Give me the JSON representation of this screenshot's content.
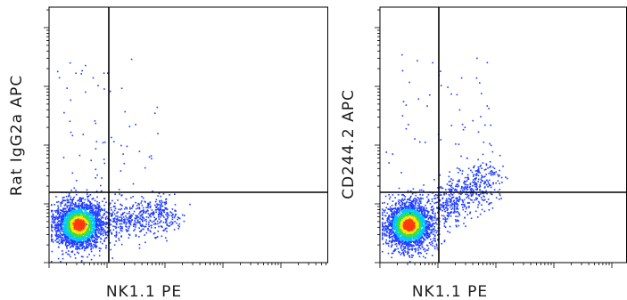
{
  "chart_data": [
    {
      "type": "scatter",
      "subtype": "flow-cytometry-density-dot-plot",
      "xlabel": "NK1.1 PE",
      "ylabel": "Rat IgG2a APC",
      "x_scale": "log",
      "y_scale": "log",
      "grid": false,
      "quadrant_gates": true,
      "populations": [
        {
          "role": "main-cluster",
          "fraction": 0.82
        },
        {
          "role": "right-tail",
          "fraction": 0.15
        },
        {
          "role": "sparse",
          "fraction": 0.03
        }
      ]
    },
    {
      "type": "scatter",
      "subtype": "flow-cytometry-density-dot-plot",
      "xlabel": "NK1.1 PE",
      "ylabel": "CD244.2 APC",
      "x_scale": "log",
      "y_scale": "log",
      "grid": false,
      "quadrant_gates": true,
      "populations": [
        {
          "role": "main-cluster",
          "fraction": 0.78
        },
        {
          "role": "upper-right-tail",
          "fraction": 0.19
        },
        {
          "role": "sparse",
          "fraction": 0.03
        }
      ]
    }
  ],
  "colors": {
    "density_low": "#1f3cff",
    "density_mid_low": "#00c8ff",
    "density_mid": "#33e04d",
    "density_mid_high": "#ffe600",
    "density_high": "#ff3a10",
    "axis": "#000000",
    "gate": "#000000"
  }
}
